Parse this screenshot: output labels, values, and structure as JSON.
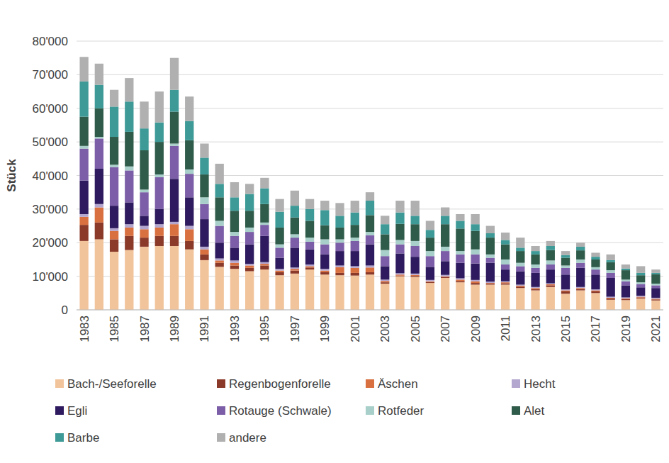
{
  "chart_data": {
    "type": "bar",
    "stacked": true,
    "grid": true,
    "legend": "bottom",
    "y_label": "Stück",
    "categories": [
      "1983",
      null,
      "1985",
      null,
      "1987",
      null,
      "1989",
      null,
      "1991",
      null,
      "1993",
      null,
      "1995",
      null,
      "1997",
      null,
      "1999",
      null,
      "2001",
      null,
      "2003",
      null,
      "2005",
      null,
      "2007",
      null,
      "2009",
      null,
      "2011",
      null,
      "2013",
      null,
      "2015",
      null,
      "2017",
      null,
      "2019",
      null,
      "2021"
    ],
    "ylim": [
      0,
      80000
    ],
    "yticks": [
      0,
      {
        "value": 10000,
        "label": "10'000"
      },
      {
        "value": 20000,
        "label": "20'000"
      },
      {
        "value": 30000,
        "label": "30'000"
      },
      {
        "value": 40000,
        "label": "40'000"
      },
      {
        "value": 50000,
        "label": "50'000"
      },
      {
        "value": 60000,
        "label": "60'000"
      },
      {
        "value": 70000,
        "label": "70'000"
      },
      {
        "value": 80000,
        "label": "80'000"
      }
    ],
    "series": [
      {
        "name": "Bach-/Seeforelle",
        "color": "#f2c49b",
        "values": [
          20500,
          21000,
          17300,
          17800,
          18800,
          19000,
          19000,
          18000,
          14800,
          12800,
          12200,
          11500,
          12000,
          10300,
          10800,
          12000,
          10500,
          10300,
          10200,
          10500,
          7800,
          10000,
          9800,
          8000,
          9500,
          8200,
          7500,
          7500,
          7500,
          6500,
          5800,
          6800,
          4800,
          5800,
          5000,
          3000,
          2900,
          3400,
          2800
        ]
      },
      {
        "name": "Regenbogenforelle",
        "color": "#8b3a2a",
        "values": [
          4800,
          5000,
          3700,
          4200,
          2700,
          3000,
          3000,
          2500,
          1700,
          1200,
          1000,
          1000,
          1200,
          900,
          900,
          600,
          700,
          700,
          800,
          700,
          400,
          200,
          300,
          300,
          300,
          400,
          500,
          300,
          400,
          400,
          400,
          500,
          700,
          400,
          500,
          400,
          300,
          300,
          300
        ]
      },
      {
        "name": "Äschen",
        "color": "#d9703f",
        "values": [
          2400,
          4500,
          2500,
          2500,
          2500,
          2500,
          3500,
          3500,
          1500,
          700,
          800,
          700,
          500,
          500,
          500,
          400,
          500,
          1700,
          1500,
          1400,
          400,
          300,
          300,
          200,
          200,
          400,
          500,
          200,
          300,
          300,
          300,
          300,
          300,
          300,
          300,
          200,
          200,
          200,
          200
        ]
      },
      {
        "name": "Hecht",
        "color": "#b3a6cf",
        "values": [
          800,
          1000,
          800,
          1000,
          1000,
          1000,
          700,
          1000,
          800,
          600,
          700,
          500,
          500,
          500,
          400,
          500,
          500,
          500,
          500,
          600,
          400,
          400,
          400,
          400,
          400,
          400,
          400,
          400,
          300,
          300,
          300,
          300,
          300,
          300,
          300,
          300,
          300,
          300,
          300
        ]
      },
      {
        "name": "Egli",
        "color": "#2e1a5e",
        "values": [
          10000,
          10500,
          6700,
          6500,
          3000,
          4500,
          12800,
          8500,
          8200,
          4700,
          3800,
          5800,
          7800,
          3300,
          5900,
          4500,
          4300,
          4300,
          4500,
          6300,
          4000,
          5900,
          5000,
          3900,
          4100,
          4600,
          4900,
          5600,
          3500,
          4000,
          4200,
          4100,
          4400,
          5700,
          4400,
          5600,
          3600,
          2500,
          2900
        ]
      },
      {
        "name": "Rotauge (Schwale)",
        "color": "#7b5ea7",
        "values": [
          9500,
          9000,
          11500,
          9500,
          7000,
          9500,
          9800,
          7000,
          4500,
          5000,
          3500,
          3700,
          3300,
          3000,
          3000,
          2300,
          3000,
          2500,
          3000,
          2700,
          3000,
          2700,
          3200,
          3200,
          3000,
          2500,
          2700,
          1500,
          1500,
          1500,
          1500,
          1500,
          2000,
          1500,
          1500,
          1500,
          1200,
          1000,
          800
        ]
      },
      {
        "name": "Rotfeder",
        "color": "#a8cfc9",
        "values": [
          800,
          500,
          700,
          1200,
          800,
          800,
          700,
          1300,
          2000,
          1500,
          1200,
          1300,
          700,
          1000,
          1000,
          1200,
          1500,
          1000,
          1000,
          1000,
          1800,
          1300,
          1500,
          1500,
          1300,
          1000,
          1500,
          1000,
          1500,
          1000,
          1000,
          1200,
          700,
          1000,
          700,
          800,
          500,
          500,
          500
        ]
      },
      {
        "name": "Alet",
        "color": "#2f5b4a",
        "values": [
          8700,
          8500,
          8300,
          10300,
          11700,
          9700,
          9500,
          8700,
          6800,
          7000,
          6300,
          5000,
          5500,
          5000,
          5000,
          5000,
          4200,
          3500,
          3800,
          5000,
          4700,
          4800,
          5000,
          4000,
          6700,
          6700,
          5500,
          5000,
          4500,
          3500,
          3000,
          3100,
          2300,
          2700,
          2300,
          2400,
          2800,
          2100,
          2800
        ]
      },
      {
        "name": "Barbe",
        "color": "#3d9a97",
        "values": [
          10500,
          7000,
          9000,
          9000,
          6500,
          5800,
          6500,
          5700,
          5000,
          4000,
          4000,
          5000,
          4700,
          4700,
          3500,
          3500,
          4500,
          3500,
          3700,
          4300,
          3000,
          3400,
          2500,
          2300,
          2500,
          2300,
          2000,
          1300,
          1300,
          1000,
          1000,
          1200,
          800,
          1100,
          800,
          600,
          500,
          700,
          400
        ]
      },
      {
        "name": "andere",
        "color": "#b0b0b0",
        "values": [
          7300,
          6300,
          5000,
          7000,
          8000,
          9200,
          9500,
          7300,
          4200,
          6000,
          4500,
          3000,
          3100,
          3800,
          4500,
          3000,
          2800,
          3800,
          3500,
          2500,
          2500,
          3500,
          4500,
          2700,
          2500,
          2000,
          3000,
          2200,
          2200,
          3000,
          1500,
          1500,
          1200,
          1200,
          1200,
          1700,
          1200,
          2000,
          1000
        ]
      }
    ]
  }
}
